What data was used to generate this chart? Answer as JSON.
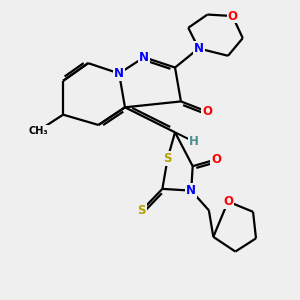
{
  "background_color": "#efefef",
  "atom_colors": {
    "C": "#000000",
    "N": "#0000ff",
    "O": "#ff0000",
    "S": "#b8a000",
    "H": "#4a9090"
  },
  "bond_color": "#000000",
  "figsize": [
    3.0,
    3.0
  ],
  "dpi": 100
}
